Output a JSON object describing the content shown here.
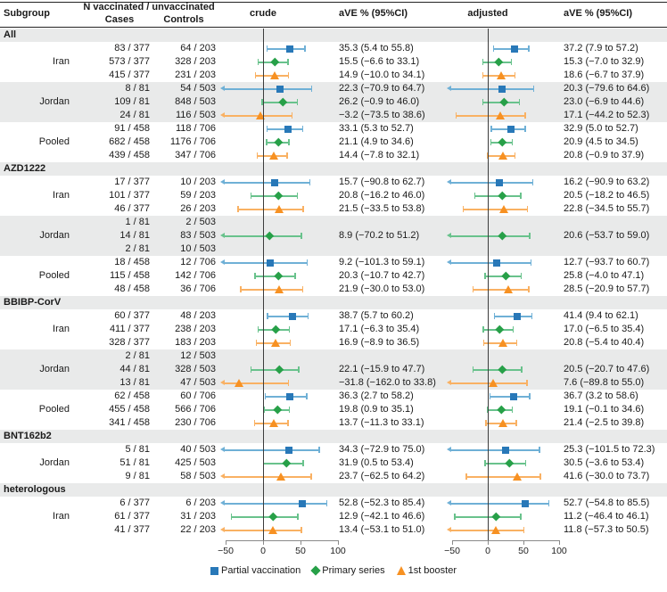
{
  "header": {
    "subgroup": "Subgroup",
    "n_group": "N vaccinated / unvaccinated",
    "cases": "Cases",
    "controls": "Controls",
    "crude": "crude",
    "crude_ci": "aVE % (95%CI)",
    "adjusted": "adjusted",
    "adjusted_ci": "aVE % (95%CI)"
  },
  "chart_data": {
    "type": "forest",
    "axis": {
      "values": [
        -50,
        0,
        50,
        100
      ],
      "labels": [
        "−50",
        "0",
        "50",
        "100"
      ]
    },
    "series_legend": [
      {
        "key": "partial",
        "name": "Partial vaccination",
        "marker": "square",
        "color": "#2878b8",
        "whisker_color": "#6fb0d6"
      },
      {
        "key": "primary",
        "name": "Primary series",
        "marker": "diamond",
        "color": "#27a048",
        "whisker_color": "#69c28c"
      },
      {
        "key": "booster",
        "name": "1st booster",
        "marker": "triangle",
        "color": "#f79122",
        "whisker_color": "#f9b163"
      }
    ],
    "rows": [
      {
        "kind": "section",
        "label": "All",
        "shaded": true
      },
      {
        "kind": "data",
        "group": "",
        "series": "partial",
        "cases": "83 / 377",
        "controls": "64 / 203",
        "shaded": false,
        "crude": {
          "est": 35.3,
          "lo": 5.4,
          "hi": 55.8,
          "label": "35.3 (5.4 to 55.8)"
        },
        "adjusted": {
          "est": 37.2,
          "lo": 7.9,
          "hi": 57.2,
          "label": "37.2 (7.9 to 57.2)"
        }
      },
      {
        "kind": "data",
        "group": "Iran",
        "series": "primary",
        "cases": "573 / 377",
        "controls": "328 / 203",
        "shaded": false,
        "crude": {
          "est": 15.5,
          "lo": -6.6,
          "hi": 33.1,
          "label": "15.5 (−6.6 to 33.1)"
        },
        "adjusted": {
          "est": 15.3,
          "lo": -7.0,
          "hi": 32.9,
          "label": "15.3 (−7.0 to 32.9)"
        }
      },
      {
        "kind": "data",
        "group": "",
        "series": "booster",
        "cases": "415 / 377",
        "controls": "231 / 203",
        "shaded": false,
        "crude": {
          "est": 14.9,
          "lo": -10.0,
          "hi": 34.1,
          "label": "14.9 (−10.0 to 34.1)"
        },
        "adjusted": {
          "est": 18.6,
          "lo": -6.7,
          "hi": 37.9,
          "label": "18.6 (−6.7 to 37.9)"
        }
      },
      {
        "kind": "data",
        "group": "",
        "series": "partial",
        "cases": "8 / 81",
        "controls": "54 / 503",
        "shaded": true,
        "crude": {
          "est": 22.3,
          "lo": -70.9,
          "hi": 64.7,
          "label": "22.3 (−70.9 to 64.7)"
        },
        "adjusted": {
          "est": 20.3,
          "lo": -79.6,
          "hi": 64.6,
          "label": "20.3 (−79.6 to 64.6)"
        }
      },
      {
        "kind": "data",
        "group": "Jordan",
        "series": "primary",
        "cases": "109 / 81",
        "controls": "848 / 503",
        "shaded": true,
        "crude": {
          "est": 26.2,
          "lo": -0.9,
          "hi": 46.0,
          "label": "26.2 (−0.9 to 46.0)"
        },
        "adjusted": {
          "est": 23.0,
          "lo": -6.9,
          "hi": 44.6,
          "label": "23.0 (−6.9 to 44.6)"
        }
      },
      {
        "kind": "data",
        "group": "",
        "series": "booster",
        "cases": "24 / 81",
        "controls": "116 / 503",
        "shaded": true,
        "crude": {
          "est": -3.2,
          "lo": -73.5,
          "hi": 38.6,
          "label": "−3.2 (−73.5 to 38.6)"
        },
        "adjusted": {
          "est": 17.1,
          "lo": -44.2,
          "hi": 52.3,
          "label": "17.1 (−44.2 to 52.3)"
        }
      },
      {
        "kind": "data",
        "group": "",
        "series": "partial",
        "cases": "91 / 458",
        "controls": "118 / 706",
        "shaded": false,
        "crude": {
          "est": 33.1,
          "lo": 5.3,
          "hi": 52.7,
          "label": "33.1 (5.3 to 52.7)"
        },
        "adjusted": {
          "est": 32.9,
          "lo": 5.0,
          "hi": 52.7,
          "label": "32.9 (5.0 to 52.7)"
        }
      },
      {
        "kind": "data",
        "group": "Pooled",
        "series": "primary",
        "cases": "682 / 458",
        "controls": "1176 / 706",
        "shaded": false,
        "crude": {
          "est": 21.1,
          "lo": 4.9,
          "hi": 34.6,
          "label": "21.1 (4.9 to 34.6)"
        },
        "adjusted": {
          "est": 20.9,
          "lo": 4.5,
          "hi": 34.5,
          "label": "20.9 (4.5 to 34.5)"
        }
      },
      {
        "kind": "data",
        "group": "",
        "series": "booster",
        "cases": "439 / 458",
        "controls": "347 / 706",
        "shaded": false,
        "crude": {
          "est": 14.4,
          "lo": -7.8,
          "hi": 32.1,
          "label": "14.4 (−7.8 to 32.1)"
        },
        "adjusted": {
          "est": 20.8,
          "lo": -0.9,
          "hi": 37.9,
          "label": "20.8 (−0.9 to 37.9)"
        }
      },
      {
        "kind": "section",
        "label": "AZD1222",
        "shaded": true
      },
      {
        "kind": "data",
        "group": "",
        "series": "partial",
        "cases": "17 / 377",
        "controls": "10 / 203",
        "shaded": false,
        "crude": {
          "est": 15.7,
          "lo": -90.8,
          "hi": 62.7,
          "label": "15.7 (−90.8 to 62.7)"
        },
        "adjusted": {
          "est": 16.2,
          "lo": -90.9,
          "hi": 63.2,
          "label": "16.2 (−90.9 to 63.2)"
        }
      },
      {
        "kind": "data",
        "group": "Iran",
        "series": "primary",
        "cases": "101 / 377",
        "controls": "59 / 203",
        "shaded": false,
        "crude": {
          "est": 20.8,
          "lo": -16.2,
          "hi": 46.0,
          "label": "20.8 (−16.2 to 46.0)"
        },
        "adjusted": {
          "est": 20.5,
          "lo": -18.2,
          "hi": 46.5,
          "label": "20.5 (−18.2 to 46.5)"
        }
      },
      {
        "kind": "data",
        "group": "",
        "series": "booster",
        "cases": "46 / 377",
        "controls": "26 / 203",
        "shaded": false,
        "crude": {
          "est": 21.5,
          "lo": -33.5,
          "hi": 53.8,
          "label": "21.5 (−33.5 to 53.8)"
        },
        "adjusted": {
          "est": 22.8,
          "lo": -34.5,
          "hi": 55.7,
          "label": "22.8 (−34.5 to 55.7)"
        }
      },
      {
        "kind": "data",
        "group": "",
        "series": "partial",
        "cases": "1 / 81",
        "controls": "2 / 503",
        "shaded": true,
        "crude": null,
        "adjusted": null
      },
      {
        "kind": "data",
        "group": "Jordan",
        "series": "primary",
        "cases": "14 / 81",
        "controls": "83 / 503",
        "shaded": true,
        "crude": {
          "est": 8.9,
          "lo": -70.2,
          "hi": 51.2,
          "label": "8.9 (−70.2 to 51.2)"
        },
        "adjusted": {
          "est": 20.6,
          "lo": -53.7,
          "hi": 59.0,
          "label": "20.6 (−53.7 to 59.0)"
        }
      },
      {
        "kind": "data",
        "group": "",
        "series": "booster",
        "cases": "2 / 81",
        "controls": "10 / 503",
        "shaded": true,
        "crude": null,
        "adjusted": null
      },
      {
        "kind": "data",
        "group": "",
        "series": "partial",
        "cases": "18 / 458",
        "controls": "12 / 706",
        "shaded": false,
        "crude": {
          "est": 9.2,
          "lo": -101.3,
          "hi": 59.1,
          "label": "9.2 (−101.3 to 59.1)"
        },
        "adjusted": {
          "est": 12.7,
          "lo": -93.7,
          "hi": 60.7,
          "label": "12.7 (−93.7 to 60.7)"
        }
      },
      {
        "kind": "data",
        "group": "Pooled",
        "series": "primary",
        "cases": "115 / 458",
        "controls": "142 / 706",
        "shaded": false,
        "crude": {
          "est": 20.3,
          "lo": -10.7,
          "hi": 42.7,
          "label": "20.3 (−10.7 to 42.7)"
        },
        "adjusted": {
          "est": 25.8,
          "lo": -4.0,
          "hi": 47.1,
          "label": "25.8 (−4.0 to 47.1)"
        }
      },
      {
        "kind": "data",
        "group": "",
        "series": "booster",
        "cases": "48 / 458",
        "controls": "36 / 706",
        "shaded": false,
        "crude": {
          "est": 21.9,
          "lo": -30.0,
          "hi": 53.0,
          "label": "21.9 (−30.0 to 53.0)"
        },
        "adjusted": {
          "est": 28.5,
          "lo": -20.9,
          "hi": 57.7,
          "label": "28.5 (−20.9 to 57.7)"
        }
      },
      {
        "kind": "section",
        "label": "BBIBP-CorV",
        "shaded": true
      },
      {
        "kind": "data",
        "group": "",
        "series": "partial",
        "cases": "60 / 377",
        "controls": "48 / 203",
        "shaded": false,
        "crude": {
          "est": 38.7,
          "lo": 5.7,
          "hi": 60.2,
          "label": "38.7 (5.7 to 60.2)"
        },
        "adjusted": {
          "est": 41.4,
          "lo": 9.4,
          "hi": 62.1,
          "label": "41.4 (9.4 to 62.1)"
        }
      },
      {
        "kind": "data",
        "group": "Iran",
        "series": "primary",
        "cases": "411 / 377",
        "controls": "238 / 203",
        "shaded": false,
        "crude": {
          "est": 17.1,
          "lo": -6.3,
          "hi": 35.4,
          "label": "17.1 (−6.3 to 35.4)"
        },
        "adjusted": {
          "est": 17.0,
          "lo": -6.5,
          "hi": 35.4,
          "label": "17.0 (−6.5 to 35.4)"
        }
      },
      {
        "kind": "data",
        "group": "",
        "series": "booster",
        "cases": "328 / 377",
        "controls": "183 / 203",
        "shaded": false,
        "crude": {
          "est": 16.9,
          "lo": -8.9,
          "hi": 36.5,
          "label": "16.9 (−8.9 to 36.5)"
        },
        "adjusted": {
          "est": 20.8,
          "lo": -5.4,
          "hi": 40.4,
          "label": "20.8 (−5.4 to 40.4)"
        }
      },
      {
        "kind": "data",
        "group": "",
        "series": "partial",
        "cases": "2 / 81",
        "controls": "12 / 503",
        "shaded": true,
        "crude": null,
        "adjusted": null
      },
      {
        "kind": "data",
        "group": "Jordan",
        "series": "primary",
        "cases": "44 / 81",
        "controls": "328 / 503",
        "shaded": true,
        "crude": {
          "est": 22.1,
          "lo": -15.9,
          "hi": 47.7,
          "label": "22.1 (−15.9 to 47.7)"
        },
        "adjusted": {
          "est": 20.5,
          "lo": -20.7,
          "hi": 47.6,
          "label": "20.5 (−20.7 to 47.6)"
        }
      },
      {
        "kind": "data",
        "group": "",
        "series": "booster",
        "cases": "13 / 81",
        "controls": "47 / 503",
        "shaded": true,
        "crude": {
          "est": -31.8,
          "lo": -162.0,
          "hi": 33.8,
          "label": "−31.8 (−162.0 to 33.8)"
        },
        "adjusted": {
          "est": 7.6,
          "lo": -89.8,
          "hi": 55.0,
          "label": "7.6 (−89.8 to 55.0)"
        }
      },
      {
        "kind": "data",
        "group": "",
        "series": "partial",
        "cases": "62 / 458",
        "controls": "60 / 706",
        "shaded": false,
        "crude": {
          "est": 36.3,
          "lo": 2.7,
          "hi": 58.2,
          "label": "36.3 (2.7 to 58.2)"
        },
        "adjusted": {
          "est": 36.7,
          "lo": 3.2,
          "hi": 58.6,
          "label": "36.7 (3.2 to 58.6)"
        }
      },
      {
        "kind": "data",
        "group": "Pooled",
        "series": "primary",
        "cases": "455 / 458",
        "controls": "566 / 706",
        "shaded": false,
        "crude": {
          "est": 19.8,
          "lo": 0.9,
          "hi": 35.1,
          "label": "19.8 (0.9 to 35.1)"
        },
        "adjusted": {
          "est": 19.1,
          "lo": -0.1,
          "hi": 34.6,
          "label": "19.1 (−0.1 to 34.6)"
        }
      },
      {
        "kind": "data",
        "group": "",
        "series": "booster",
        "cases": "341 / 458",
        "controls": "230 / 706",
        "shaded": false,
        "crude": {
          "est": 13.7,
          "lo": -11.3,
          "hi": 33.1,
          "label": "13.7 (−11.3 to 33.1)"
        },
        "adjusted": {
          "est": 21.4,
          "lo": -2.5,
          "hi": 39.8,
          "label": "21.4 (−2.5 to 39.8)"
        }
      },
      {
        "kind": "section",
        "label": "BNT162b2",
        "shaded": true
      },
      {
        "kind": "data",
        "group": "",
        "series": "partial",
        "cases": "5 / 81",
        "controls": "40 / 503",
        "shaded": false,
        "crude": {
          "est": 34.3,
          "lo": -72.9,
          "hi": 75.0,
          "label": "34.3 (−72.9 to 75.0)"
        },
        "adjusted": {
          "est": 25.3,
          "lo": -101.5,
          "hi": 72.3,
          "label": "25.3 (−101.5 to 72.3)"
        }
      },
      {
        "kind": "data",
        "group": "Jordan",
        "series": "primary",
        "cases": "51 / 81",
        "controls": "425 / 503",
        "shaded": false,
        "crude": {
          "est": 31.9,
          "lo": 0.5,
          "hi": 53.4,
          "label": "31.9 (0.5 to 53.4)"
        },
        "adjusted": {
          "est": 30.5,
          "lo": -3.6,
          "hi": 53.4,
          "label": "30.5 (−3.6 to 53.4)"
        }
      },
      {
        "kind": "data",
        "group": "",
        "series": "booster",
        "cases": "9 / 81",
        "controls": "58 / 503",
        "shaded": false,
        "crude": {
          "est": 23.7,
          "lo": -62.5,
          "hi": 64.2,
          "label": "23.7 (−62.5 to 64.2)"
        },
        "adjusted": {
          "est": 41.6,
          "lo": -30.0,
          "hi": 73.7,
          "label": "41.6 (−30.0 to 73.7)"
        }
      },
      {
        "kind": "section",
        "label": "heterologous",
        "shaded": true
      },
      {
        "kind": "data",
        "group": "",
        "series": "partial",
        "cases": "6 / 377",
        "controls": "6 / 203",
        "shaded": false,
        "crude": {
          "est": 52.8,
          "lo": -52.3,
          "hi": 85.4,
          "label": "52.8 (−52.3 to 85.4)"
        },
        "adjusted": {
          "est": 52.7,
          "lo": -54.8,
          "hi": 85.5,
          "label": "52.7 (−54.8 to 85.5)"
        }
      },
      {
        "kind": "data",
        "group": "Iran",
        "series": "primary",
        "cases": "61 / 377",
        "controls": "31 / 203",
        "shaded": false,
        "crude": {
          "est": 12.9,
          "lo": -42.1,
          "hi": 46.6,
          "label": "12.9 (−42.1 to 46.6)"
        },
        "adjusted": {
          "est": 11.2,
          "lo": -46.4,
          "hi": 46.1,
          "label": "11.2 (−46.4 to 46.1)"
        }
      },
      {
        "kind": "data",
        "group": "",
        "series": "booster",
        "cases": "41 / 377",
        "controls": "22 / 203",
        "shaded": false,
        "crude": {
          "est": 13.4,
          "lo": -53.1,
          "hi": 51.0,
          "label": "13.4 (−53.1 to 51.0)"
        },
        "adjusted": {
          "est": 11.8,
          "lo": -57.3,
          "hi": 50.5,
          "label": "11.8 (−57.3 to 50.5)"
        }
      }
    ]
  }
}
